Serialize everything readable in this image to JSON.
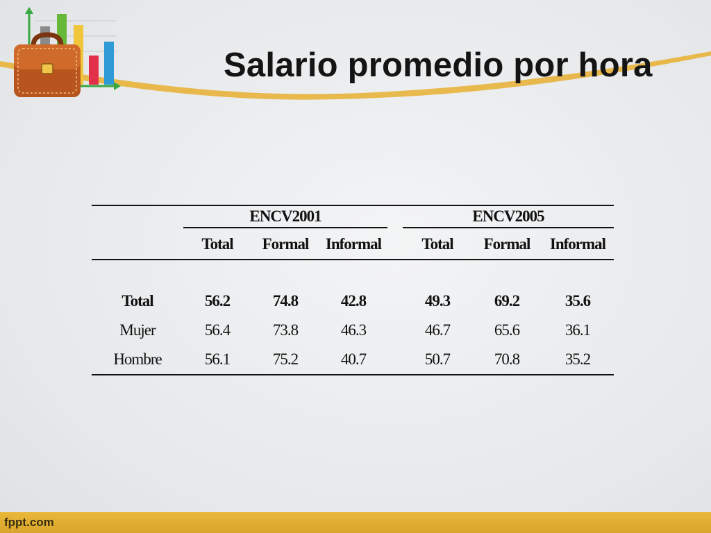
{
  "slide": {
    "title": "Salario promedio por hora",
    "footer_brand": "fppt.com"
  },
  "table": {
    "groups": [
      "ENCV2001",
      "ENCV2005"
    ],
    "columns": [
      "Total",
      "Formal",
      "Informal",
      "Total",
      "Formal",
      "Informal"
    ],
    "rows": [
      {
        "label": "Total",
        "values": [
          "56.2",
          "74.8",
          "42.8",
          "49.3",
          "69.2",
          "35.6"
        ]
      },
      {
        "label": "Mujer",
        "values": [
          "56.4",
          "73.8",
          "46.3",
          "46.7",
          "65.6",
          "36.1"
        ]
      },
      {
        "label": "Hombre",
        "values": [
          "56.1",
          "75.2",
          "40.7",
          "50.7",
          "70.8",
          "35.2"
        ]
      }
    ]
  },
  "icons": {
    "logo": "briefcase-with-bar-chart-icon"
  },
  "colors": {
    "swoosh": "#e8b23a",
    "footer": "#e0ad32",
    "briefcase": "#b8551f"
  }
}
